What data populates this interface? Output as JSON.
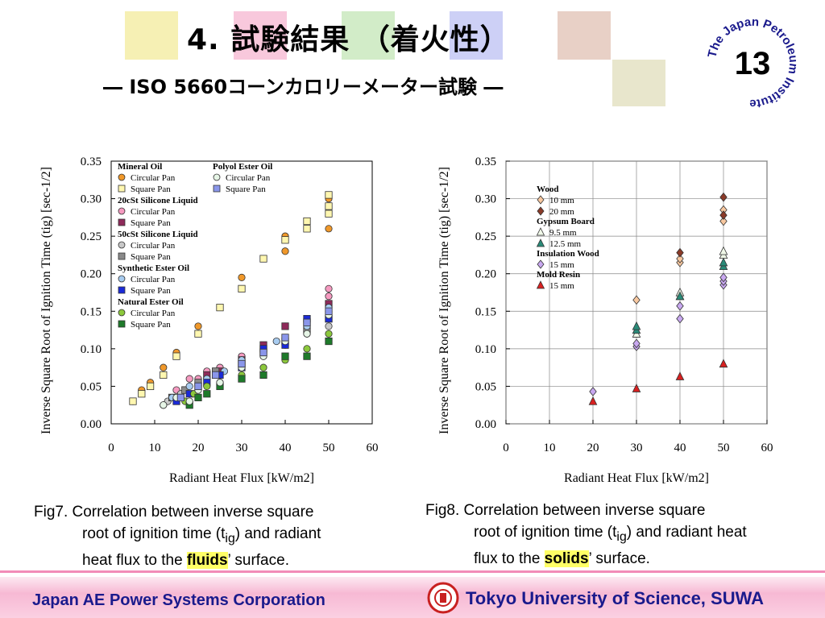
{
  "slide": {
    "title": "4. 試験結果 （着火性）",
    "subtitle": "― ISO 5660コーンカロリーメーター試験 ―",
    "page_number": "13",
    "seal_text": "The Japan Petroleum Institute",
    "deco_colors": [
      "#f6f0b4",
      "#f8c8dc",
      "#d2ecc8",
      "#cdd0f6",
      "#e8d0c6",
      "#e8e6cc"
    ]
  },
  "footer": {
    "left": "Japan AE Power Systems Corporation",
    "right": "Tokyo University of Science, SUWA"
  },
  "captions": {
    "fig7": {
      "l1": "Fig7.  Correlation between inverse square",
      "l2a": "root of ignition time (t",
      "l2sub": "ig",
      "l2b": ") and radiant",
      "l3a": "heat flux to the ",
      "l3emph": "fluids",
      "l3b": "’ surface."
    },
    "fig8": {
      "l1": "Fig8.  Correlation between inverse square",
      "l2a": "root of ignition time (t",
      "l2sub": "ig",
      "l2b": ") and radiant heat",
      "l3a": "flux to the ",
      "l3emph": "solids",
      "l3b": "’ surface."
    }
  },
  "chart_data": [
    {
      "type": "scatter",
      "ylabel": "Inverse Square Root of  Ignition Time (tig) [sec-1/2]",
      "xlabel": "Radiant Heat Flux [kW/m2]",
      "xlim": [
        0,
        60
      ],
      "ylim": [
        0,
        0.35
      ],
      "xticks": [
        "0",
        "10",
        "20",
        "30",
        "40",
        "50",
        "60"
      ],
      "yticks": [
        "0.00",
        "0.05",
        "0.10",
        "0.15",
        "0.20",
        "0.25",
        "0.30",
        "0.35"
      ],
      "legend_groups": [
        {
          "title": "Mineral Oil",
          "items": [
            {
              "label": "Circular Pan",
              "shape": "circle",
              "color": "#f0982a"
            },
            {
              "label": "Square Pan",
              "shape": "square",
              "color": "#fff7b0"
            }
          ]
        },
        {
          "title": "20cSt Silicone Liquid",
          "items": [
            {
              "label": "Circular Pan",
              "shape": "circle",
              "color": "#f59ac0"
            },
            {
              "label": "Square Pan",
              "shape": "square",
              "color": "#8e2a5a"
            }
          ]
        },
        {
          "title": "50cSt Silicone Liquid",
          "items": [
            {
              "label": "Circular Pan",
              "shape": "circle",
              "color": "#c8c8c8"
            },
            {
              "label": "Square Pan",
              "shape": "square",
              "color": "#8a8a8a"
            }
          ]
        },
        {
          "title": "Synthetic Ester Oil",
          "items": [
            {
              "label": "Circular Pan",
              "shape": "circle",
              "color": "#a8ccf0"
            },
            {
              "label": "Square Pan",
              "shape": "square",
              "color": "#1a2ad8"
            }
          ]
        },
        {
          "title": "Natural Ester Oil",
          "items": [
            {
              "label": "Circular Pan",
              "shape": "circle",
              "color": "#8cc83c"
            },
            {
              "label": "Square Pan",
              "shape": "square",
              "color": "#1e7a2a"
            }
          ]
        },
        {
          "title": "Polyol Ester Oil",
          "items": [
            {
              "label": "Circular Pan",
              "shape": "circle",
              "color": "#e6f5e6"
            },
            {
              "label": "Square Pan",
              "shape": "square",
              "color": "#8a96ea"
            }
          ]
        }
      ],
      "series": [
        {
          "name": "Mineral Oil Circular Pan",
          "shape": "circle",
          "color": "#f0982a",
          "x": [
            5,
            7,
            9,
            12,
            15,
            20,
            30,
            40,
            40,
            50,
            50
          ],
          "y": [
            0.03,
            0.045,
            0.055,
            0.075,
            0.095,
            0.13,
            0.195,
            0.25,
            0.23,
            0.3,
            0.26
          ]
        },
        {
          "name": "Mineral Oil Square Pan",
          "shape": "square",
          "color": "#fff7b0",
          "x": [
            5,
            7,
            9,
            12,
            15,
            20,
            25,
            30,
            35,
            40,
            45,
            45,
            50,
            50,
            50
          ],
          "y": [
            0.03,
            0.04,
            0.05,
            0.065,
            0.09,
            0.12,
            0.155,
            0.18,
            0.22,
            0.245,
            0.26,
            0.27,
            0.28,
            0.29,
            0.305
          ]
        },
        {
          "name": "20cSt Silicone Liquid Circular Pan",
          "shape": "circle",
          "color": "#f59ac0",
          "x": [
            15,
            18,
            20,
            22,
            25,
            30,
            35,
            40,
            45,
            50,
            50,
            50
          ],
          "y": [
            0.045,
            0.06,
            0.06,
            0.07,
            0.075,
            0.09,
            0.1,
            0.13,
            0.14,
            0.15,
            0.17,
            0.18
          ]
        },
        {
          "name": "20cSt Silicone Liquid Square Pan",
          "shape": "square",
          "color": "#8e2a5a",
          "x": [
            20,
            22,
            25,
            30,
            35,
            40,
            45,
            50
          ],
          "y": [
            0.05,
            0.065,
            0.07,
            0.085,
            0.105,
            0.13,
            0.135,
            0.16
          ]
        },
        {
          "name": "50cSt Silicone Liquid Circular Pan",
          "shape": "circle",
          "color": "#c8c8c8",
          "x": [
            13,
            16,
            20,
            25,
            30,
            35,
            40,
            45,
            50
          ],
          "y": [
            0.03,
            0.04,
            0.05,
            0.065,
            0.085,
            0.09,
            0.105,
            0.12,
            0.13
          ]
        },
        {
          "name": "50cSt Silicone Liquid Square Pan",
          "shape": "square",
          "color": "#8a8a8a",
          "x": [
            14,
            17,
            20,
            24,
            30,
            35,
            40,
            45,
            50
          ],
          "y": [
            0.035,
            0.045,
            0.055,
            0.07,
            0.08,
            0.095,
            0.11,
            0.125,
            0.14
          ]
        },
        {
          "name": "Synthetic Ester Oil Circular Pan",
          "shape": "circle",
          "color": "#a8ccf0",
          "x": [
            12,
            14,
            18,
            22,
            26,
            30,
            35,
            38,
            45,
            50
          ],
          "y": [
            0.025,
            0.035,
            0.05,
            0.06,
            0.07,
            0.085,
            0.1,
            0.11,
            0.13,
            0.155
          ]
        },
        {
          "name": "Synthetic Ester Oil Square Pan",
          "shape": "square",
          "color": "#1a2ad8",
          "x": [
            15,
            18,
            22,
            25,
            30,
            35,
            40,
            45,
            50
          ],
          "y": [
            0.03,
            0.04,
            0.055,
            0.065,
            0.075,
            0.1,
            0.105,
            0.14,
            0.14
          ]
        },
        {
          "name": "Natural Ester Oil Circular Pan",
          "shape": "circle",
          "color": "#8cc83c",
          "x": [
            17,
            19,
            22,
            25,
            30,
            35,
            40,
            45,
            50
          ],
          "y": [
            0.03,
            0.04,
            0.05,
            0.055,
            0.065,
            0.075,
            0.085,
            0.1,
            0.12
          ]
        },
        {
          "name": "Natural Ester Oil Square Pan",
          "shape": "square",
          "color": "#1e7a2a",
          "x": [
            18,
            20,
            22,
            25,
            30,
            35,
            40,
            45,
            50
          ],
          "y": [
            0.025,
            0.035,
            0.04,
            0.05,
            0.06,
            0.065,
            0.09,
            0.09,
            0.11
          ]
        },
        {
          "name": "Polyol Ester Oil Circular Pan",
          "shape": "circle",
          "color": "#e6f5e6",
          "x": [
            12,
            15,
            18,
            20,
            25,
            30,
            35,
            40,
            45,
            50
          ],
          "y": [
            0.025,
            0.035,
            0.03,
            0.045,
            0.055,
            0.075,
            0.09,
            0.11,
            0.12,
            0.145
          ]
        },
        {
          "name": "Polyol Ester Oil Square Pan",
          "shape": "square",
          "color": "#8a96ea",
          "x": [
            16,
            20,
            24,
            30,
            35,
            40,
            45,
            50
          ],
          "y": [
            0.035,
            0.05,
            0.065,
            0.08,
            0.095,
            0.115,
            0.135,
            0.15
          ]
        }
      ]
    },
    {
      "type": "scatter",
      "ylabel": "Inverse Square Root of  Ignition Time (tig) [sec-1/2]",
      "xlabel": "Radiant Heat Flux [kW/m2]",
      "xlim": [
        0,
        60
      ],
      "ylim": [
        0,
        0.35
      ],
      "xticks": [
        "0",
        "10",
        "20",
        "30",
        "40",
        "50",
        "60"
      ],
      "yticks": [
        "0.00",
        "0.05",
        "0.10",
        "0.15",
        "0.20",
        "0.25",
        "0.30",
        "0.35"
      ],
      "legend_groups": [
        {
          "title": "Wood",
          "items": [
            {
              "label": "10 mm",
              "shape": "diamond",
              "color": "#f8c8a0"
            },
            {
              "label": "20 mm",
              "shape": "diamond",
              "color": "#8a3a28"
            }
          ]
        },
        {
          "title": "Gypsum Board",
          "items": [
            {
              "label": "9.5 mm",
              "shape": "triangle",
              "color": "#f0f8e8"
            },
            {
              "label": "12.5 mm",
              "shape": "triangle",
              "color": "#2a8a78"
            }
          ]
        },
        {
          "title": "Insulation Wood",
          "items": [
            {
              "label": "15 mm",
              "shape": "diamond",
              "color": "#c8a8f0"
            }
          ]
        },
        {
          "title": "Mold Resin",
          "items": [
            {
              "label": "15 mm",
              "shape": "triangle",
              "color": "#d82020"
            }
          ]
        }
      ],
      "series": [
        {
          "name": "Wood 10 mm",
          "shape": "diamond",
          "color": "#f8c8a0",
          "x": [
            30,
            40,
            40,
            50,
            50
          ],
          "y": [
            0.165,
            0.215,
            0.22,
            0.27,
            0.285
          ]
        },
        {
          "name": "Wood 20 mm",
          "shape": "diamond",
          "color": "#8a3a28",
          "x": [
            40,
            50,
            50
          ],
          "y": [
            0.228,
            0.278,
            0.302
          ]
        },
        {
          "name": "Gypsum Board 9.5 mm",
          "shape": "triangle",
          "color": "#f0f8e8",
          "x": [
            30,
            40,
            40,
            50,
            50
          ],
          "y": [
            0.12,
            0.17,
            0.175,
            0.225,
            0.23
          ]
        },
        {
          "name": "Gypsum Board 12.5 mm",
          "shape": "triangle",
          "color": "#2a8a78",
          "x": [
            30,
            30,
            40,
            50,
            50
          ],
          "y": [
            0.125,
            0.13,
            0.17,
            0.21,
            0.215
          ]
        },
        {
          "name": "Insulation Wood 15 mm",
          "shape": "diamond",
          "color": "#c8a8f0",
          "x": [
            20,
            30,
            30,
            40,
            40,
            50,
            50,
            50
          ],
          "y": [
            0.043,
            0.103,
            0.107,
            0.14,
            0.157,
            0.185,
            0.19,
            0.195
          ]
        },
        {
          "name": "Mold Resin 15 mm",
          "shape": "triangle",
          "color": "#d82020",
          "x": [
            20,
            30,
            40,
            50
          ],
          "y": [
            0.03,
            0.047,
            0.063,
            0.08
          ]
        }
      ]
    }
  ]
}
